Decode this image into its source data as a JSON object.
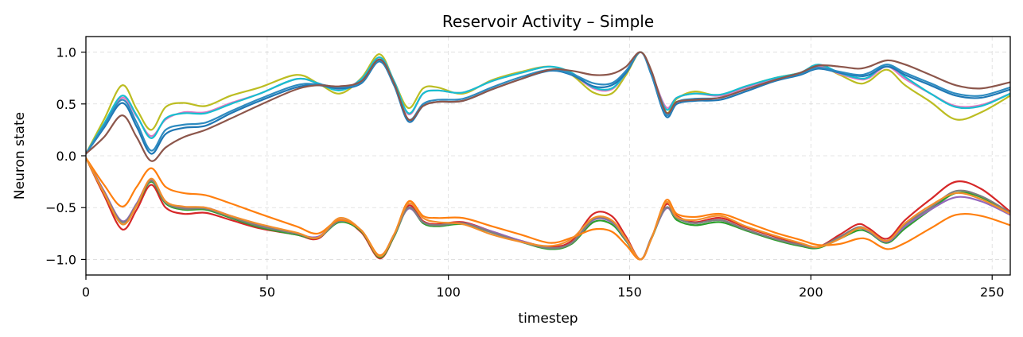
{
  "chart_data": {
    "type": "line",
    "title": "Reservoir Activity – Simple",
    "xlabel": "timestep",
    "ylabel": "Neuron state",
    "xlim": [
      0,
      255
    ],
    "ylim": [
      -1.15,
      1.15
    ],
    "xticks": [
      0,
      50,
      100,
      150,
      200,
      250
    ],
    "xtick_labels": [
      "0",
      "50",
      "100",
      "150",
      "200",
      "250"
    ],
    "yticks": [
      1.0,
      0.5,
      0.0,
      -0.5,
      -1.0
    ],
    "ytick_labels": [
      "1.0",
      "0.5",
      "0.0",
      "−0.5",
      "−1.0"
    ],
    "grid": true,
    "legend": false,
    "x": [
      0,
      5,
      10,
      14,
      18,
      22,
      27,
      33,
      40,
      48,
      58,
      64,
      70,
      76,
      81,
      85,
      89,
      93,
      97,
      104,
      112,
      120,
      128,
      134,
      140,
      145,
      149,
      153,
      156,
      160,
      163,
      168,
      175,
      182,
      190,
      197,
      202,
      208,
      213,
      216,
      221,
      226,
      233,
      240,
      247,
      255
    ],
    "series": [
      {
        "color": "#bcbd22",
        "values": [
          0.02,
          0.35,
          0.68,
          0.45,
          0.25,
          0.47,
          0.51,
          0.48,
          0.58,
          0.66,
          0.78,
          0.7,
          0.6,
          0.75,
          0.98,
          0.72,
          0.46,
          0.65,
          0.66,
          0.6,
          0.73,
          0.81,
          0.86,
          0.78,
          0.61,
          0.6,
          0.78,
          1.0,
          0.8,
          0.42,
          0.55,
          0.62,
          0.58,
          0.67,
          0.75,
          0.8,
          0.87,
          0.78,
          0.7,
          0.72,
          0.83,
          0.68,
          0.52,
          0.35,
          0.42,
          0.58
        ]
      },
      {
        "color": "#e377c2",
        "values": [
          0.02,
          0.3,
          0.56,
          0.38,
          0.19,
          0.35,
          0.42,
          0.42,
          0.51,
          0.6,
          0.74,
          0.7,
          0.64,
          0.74,
          0.95,
          0.72,
          0.4,
          0.6,
          0.63,
          0.61,
          0.72,
          0.8,
          0.86,
          0.79,
          0.65,
          0.64,
          0.8,
          1.0,
          0.8,
          0.47,
          0.56,
          0.6,
          0.58,
          0.66,
          0.74,
          0.79,
          0.86,
          0.79,
          0.74,
          0.75,
          0.86,
          0.74,
          0.6,
          0.48,
          0.49,
          0.6
        ]
      },
      {
        "color": "#17becf",
        "values": [
          0.02,
          0.31,
          0.58,
          0.39,
          0.17,
          0.36,
          0.41,
          0.41,
          0.5,
          0.6,
          0.74,
          0.7,
          0.63,
          0.74,
          0.95,
          0.72,
          0.41,
          0.6,
          0.63,
          0.61,
          0.72,
          0.8,
          0.86,
          0.8,
          0.66,
          0.65,
          0.8,
          1.0,
          0.8,
          0.45,
          0.56,
          0.6,
          0.59,
          0.67,
          0.75,
          0.8,
          0.88,
          0.8,
          0.75,
          0.76,
          0.88,
          0.76,
          0.6,
          0.47,
          0.48,
          0.6
        ]
      },
      {
        "color": "#1f77b4",
        "values": [
          0.02,
          0.27,
          0.51,
          0.28,
          0.02,
          0.21,
          0.27,
          0.29,
          0.41,
          0.53,
          0.66,
          0.68,
          0.65,
          0.7,
          0.91,
          0.68,
          0.33,
          0.48,
          0.52,
          0.53,
          0.64,
          0.74,
          0.82,
          0.78,
          0.67,
          0.68,
          0.8,
          1.0,
          0.78,
          0.38,
          0.5,
          0.53,
          0.54,
          0.62,
          0.72,
          0.78,
          0.84,
          0.8,
          0.77,
          0.78,
          0.86,
          0.78,
          0.68,
          0.58,
          0.56,
          0.64
        ]
      },
      {
        "color": "#2e8bc0",
        "values": [
          0.02,
          0.29,
          0.54,
          0.32,
          0.05,
          0.25,
          0.3,
          0.32,
          0.43,
          0.55,
          0.68,
          0.69,
          0.66,
          0.71,
          0.92,
          0.69,
          0.35,
          0.5,
          0.54,
          0.55,
          0.66,
          0.76,
          0.83,
          0.79,
          0.7,
          0.7,
          0.82,
          1.0,
          0.79,
          0.4,
          0.52,
          0.55,
          0.56,
          0.64,
          0.73,
          0.79,
          0.85,
          0.81,
          0.78,
          0.8,
          0.88,
          0.8,
          0.7,
          0.6,
          0.58,
          0.66
        ]
      },
      {
        "color": "#8c564b",
        "values": [
          0.02,
          0.18,
          0.39,
          0.18,
          -0.05,
          0.08,
          0.18,
          0.25,
          0.36,
          0.49,
          0.64,
          0.68,
          0.67,
          0.72,
          0.93,
          0.7,
          0.35,
          0.48,
          0.52,
          0.53,
          0.64,
          0.74,
          0.83,
          0.82,
          0.78,
          0.79,
          0.86,
          1.0,
          0.82,
          0.42,
          0.52,
          0.54,
          0.56,
          0.64,
          0.73,
          0.8,
          0.87,
          0.86,
          0.84,
          0.86,
          0.92,
          0.88,
          0.78,
          0.68,
          0.65,
          0.71
        ]
      },
      {
        "color": "#d62728",
        "values": [
          -0.02,
          -0.38,
          -0.71,
          -0.52,
          -0.28,
          -0.5,
          -0.56,
          -0.55,
          -0.62,
          -0.7,
          -0.76,
          -0.8,
          -0.62,
          -0.74,
          -0.99,
          -0.78,
          -0.48,
          -0.63,
          -0.66,
          -0.64,
          -0.73,
          -0.82,
          -0.88,
          -0.82,
          -0.56,
          -0.58,
          -0.78,
          -1.0,
          -0.8,
          -0.47,
          -0.58,
          -0.64,
          -0.6,
          -0.69,
          -0.78,
          -0.85,
          -0.88,
          -0.76,
          -0.66,
          -0.7,
          -0.8,
          -0.62,
          -0.42,
          -0.25,
          -0.32,
          -0.54
        ]
      },
      {
        "color": "#2ca02c",
        "values": [
          -0.02,
          -0.36,
          -0.66,
          -0.48,
          -0.25,
          -0.46,
          -0.52,
          -0.52,
          -0.6,
          -0.69,
          -0.76,
          -0.79,
          -0.64,
          -0.73,
          -0.98,
          -0.78,
          -0.5,
          -0.65,
          -0.68,
          -0.66,
          -0.74,
          -0.83,
          -0.9,
          -0.85,
          -0.64,
          -0.66,
          -0.82,
          -1.0,
          -0.8,
          -0.5,
          -0.62,
          -0.67,
          -0.64,
          -0.72,
          -0.81,
          -0.87,
          -0.89,
          -0.8,
          -0.72,
          -0.74,
          -0.84,
          -0.7,
          -0.52,
          -0.36,
          -0.4,
          -0.56
        ]
      },
      {
        "color": "#9467bd",
        "values": [
          -0.02,
          -0.34,
          -0.63,
          -0.46,
          -0.23,
          -0.44,
          -0.5,
          -0.5,
          -0.58,
          -0.67,
          -0.75,
          -0.78,
          -0.62,
          -0.72,
          -0.97,
          -0.76,
          -0.51,
          -0.64,
          -0.67,
          -0.65,
          -0.73,
          -0.82,
          -0.89,
          -0.84,
          -0.62,
          -0.64,
          -0.81,
          -1.0,
          -0.79,
          -0.51,
          -0.6,
          -0.65,
          -0.62,
          -0.71,
          -0.8,
          -0.86,
          -0.88,
          -0.79,
          -0.7,
          -0.73,
          -0.83,
          -0.68,
          -0.52,
          -0.4,
          -0.44,
          -0.57
        ]
      },
      {
        "color": "#7f7f7f",
        "values": [
          -0.02,
          -0.35,
          -0.64,
          -0.47,
          -0.24,
          -0.45,
          -0.51,
          -0.51,
          -0.59,
          -0.68,
          -0.75,
          -0.79,
          -0.63,
          -0.72,
          -0.97,
          -0.77,
          -0.5,
          -0.64,
          -0.67,
          -0.65,
          -0.74,
          -0.83,
          -0.89,
          -0.84,
          -0.61,
          -0.63,
          -0.8,
          -1.0,
          -0.79,
          -0.5,
          -0.6,
          -0.65,
          -0.62,
          -0.71,
          -0.8,
          -0.86,
          -0.88,
          -0.78,
          -0.69,
          -0.72,
          -0.82,
          -0.66,
          -0.5,
          -0.34,
          -0.39,
          -0.55
        ]
      },
      {
        "color": "#ff7f0e",
        "values": [
          -0.02,
          -0.28,
          -0.49,
          -0.3,
          -0.12,
          -0.3,
          -0.36,
          -0.38,
          -0.46,
          -0.56,
          -0.68,
          -0.75,
          -0.62,
          -0.72,
          -0.96,
          -0.76,
          -0.44,
          -0.58,
          -0.6,
          -0.6,
          -0.68,
          -0.76,
          -0.84,
          -0.79,
          -0.71,
          -0.73,
          -0.86,
          -1.0,
          -0.8,
          -0.43,
          -0.56,
          -0.59,
          -0.56,
          -0.64,
          -0.74,
          -0.81,
          -0.86,
          -0.85,
          -0.8,
          -0.81,
          -0.9,
          -0.84,
          -0.7,
          -0.57,
          -0.58,
          -0.67
        ]
      },
      {
        "color": "#f28e2b",
        "values": [
          -0.02,
          -0.36,
          -0.66,
          -0.48,
          -0.22,
          -0.44,
          -0.49,
          -0.5,
          -0.58,
          -0.66,
          -0.74,
          -0.79,
          -0.6,
          -0.72,
          -0.97,
          -0.76,
          -0.46,
          -0.6,
          -0.64,
          -0.66,
          -0.76,
          -0.83,
          -0.87,
          -0.8,
          -0.6,
          -0.62,
          -0.8,
          -1.0,
          -0.8,
          -0.45,
          -0.59,
          -0.62,
          -0.58,
          -0.68,
          -0.77,
          -0.84,
          -0.88,
          -0.8,
          -0.7,
          -0.72,
          -0.82,
          -0.65,
          -0.48,
          -0.36,
          -0.42,
          -0.56
        ]
      }
    ]
  }
}
